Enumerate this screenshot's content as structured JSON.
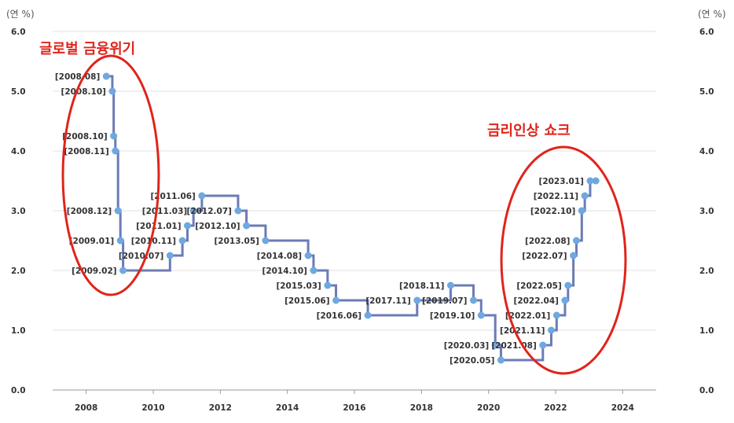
{
  "chart_data": {
    "type": "line",
    "step": true,
    "y_unit_left": "(연 %)",
    "y_unit_right": "(연 %)",
    "xlim": [
      2007,
      2025
    ],
    "ylim": [
      0,
      6
    ],
    "x_ticks": [
      "2008",
      "2010",
      "2012",
      "2014",
      "2016",
      "2018",
      "2020",
      "2022",
      "2024"
    ],
    "y_ticks": [
      "0.0",
      "1.0",
      "2.0",
      "3.0",
      "4.0",
      "5.0",
      "6.0"
    ],
    "grid": "horizontal",
    "line_color": "#6c7bb5",
    "marker_color": "#6fa8e0",
    "points": [
      {
        "label": "[2008.08]",
        "x": 2008.6,
        "y": 5.25
      },
      {
        "label": "[2008.10]",
        "x": 2008.78,
        "y": 5.0
      },
      {
        "label": "[2008.10]",
        "x": 2008.82,
        "y": 4.25
      },
      {
        "label": "[2008.11]",
        "x": 2008.87,
        "y": 4.0
      },
      {
        "label": "[2008.12]",
        "x": 2008.95,
        "y": 3.0
      },
      {
        "label": "[2009.01]",
        "x": 2009.02,
        "y": 2.5
      },
      {
        "label": "[2009.02]",
        "x": 2009.1,
        "y": 2.0
      },
      {
        "label": "[2010.07]",
        "x": 2010.5,
        "y": 2.25
      },
      {
        "label": "[2010.11]",
        "x": 2010.87,
        "y": 2.5
      },
      {
        "label": "[2011.01]",
        "x": 2011.02,
        "y": 2.75
      },
      {
        "label": "[2011.03]",
        "x": 2011.2,
        "y": 3.0
      },
      {
        "label": "[2011.06]",
        "x": 2011.45,
        "y": 3.25
      },
      {
        "label": "[2012.07]",
        "x": 2012.53,
        "y": 3.0
      },
      {
        "label": "[2012.10]",
        "x": 2012.78,
        "y": 2.75
      },
      {
        "label": "[2013.05]",
        "x": 2013.35,
        "y": 2.5
      },
      {
        "label": "[2014.08]",
        "x": 2014.62,
        "y": 2.25
      },
      {
        "label": "[2014.10]",
        "x": 2014.78,
        "y": 2.0
      },
      {
        "label": "[2015.03]",
        "x": 2015.2,
        "y": 1.75
      },
      {
        "label": "[2015.06]",
        "x": 2015.45,
        "y": 1.5
      },
      {
        "label": "[2016.06]",
        "x": 2016.4,
        "y": 1.25
      },
      {
        "label": "[2017.11]",
        "x": 2017.87,
        "y": 1.5
      },
      {
        "label": "[2018.11]",
        "x": 2018.87,
        "y": 1.75
      },
      {
        "label": "[2019.07]",
        "x": 2019.55,
        "y": 1.5
      },
      {
        "label": "[2019.10]",
        "x": 2019.78,
        "y": 1.25
      },
      {
        "label": "[2020.03]",
        "x": 2020.2,
        "y": 0.75
      },
      {
        "label": "[2020.05]",
        "x": 2020.37,
        "y": 0.5
      },
      {
        "label": "[2021.08]",
        "x": 2021.62,
        "y": 0.75
      },
      {
        "label": "[2021.11]",
        "x": 2021.87,
        "y": 1.0
      },
      {
        "label": "[2022.01]",
        "x": 2022.03,
        "y": 1.25
      },
      {
        "label": "[2022.04]",
        "x": 2022.28,
        "y": 1.5
      },
      {
        "label": "[2022.05]",
        "x": 2022.37,
        "y": 1.75
      },
      {
        "label": "[2022.07]",
        "x": 2022.53,
        "y": 2.25
      },
      {
        "label": "[2022.08]",
        "x": 2022.62,
        "y": 2.5
      },
      {
        "label": "[2022.10]",
        "x": 2022.78,
        "y": 3.0
      },
      {
        "label": "[2022.11]",
        "x": 2022.87,
        "y": 3.25
      },
      {
        "label": "[2023.01]",
        "x": 2023.03,
        "y": 3.5
      },
      {
        "label": "",
        "x": 2023.2,
        "y": 3.5
      }
    ],
    "annotations": [
      {
        "text": "글로벌 금융위기",
        "color": "#e0241b"
      },
      {
        "text": "금리인상 쇼크",
        "color": "#e0241b"
      }
    ]
  }
}
